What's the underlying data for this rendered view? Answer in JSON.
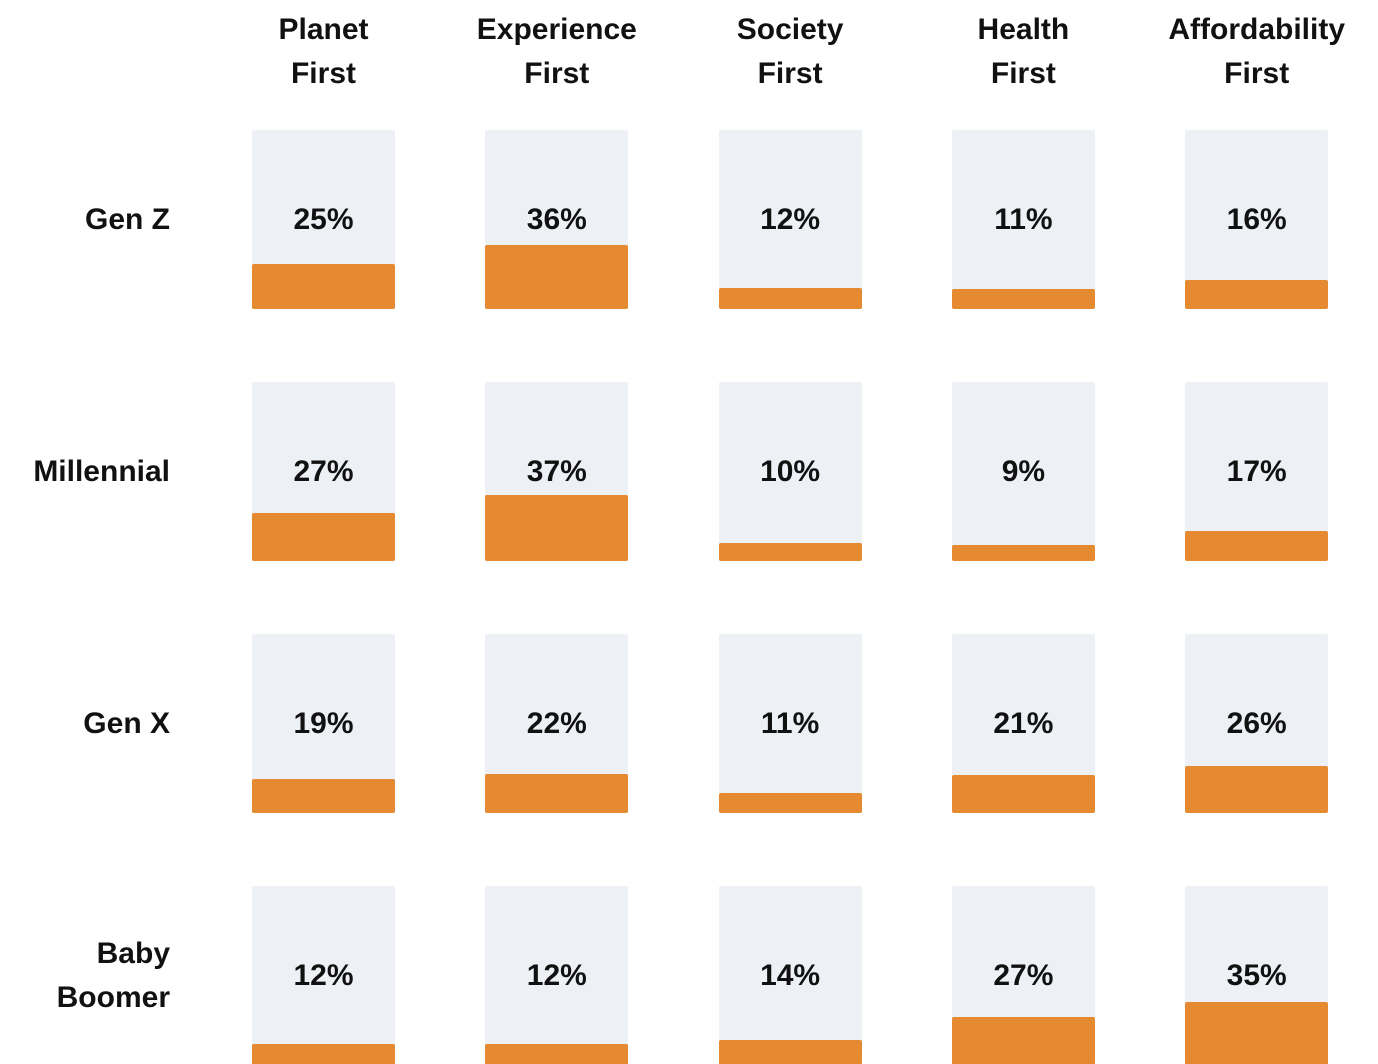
{
  "chart_data": {
    "type": "bar",
    "categories": [
      "Planet First",
      "Experience First",
      "Society First",
      "Health First",
      "Affordability First"
    ],
    "ylim": [
      0,
      100
    ],
    "color": "#e68a32",
    "series": [
      {
        "name": "Gen Z",
        "values": [
          25,
          36,
          12,
          11,
          16
        ],
        "value_labels": [
          "25%",
          "36%",
          "12%",
          "11%",
          "16%"
        ]
      },
      {
        "name": "Millennial",
        "values": [
          27,
          37,
          10,
          9,
          17
        ],
        "value_labels": [
          "27%",
          "37%",
          "10%",
          "9%",
          "17%"
        ]
      },
      {
        "name": "Gen X",
        "values": [
          19,
          22,
          11,
          21,
          26
        ],
        "value_labels": [
          "19%",
          "22%",
          "11%",
          "21%",
          "26%"
        ]
      },
      {
        "name": "Baby Boomer",
        "values": [
          12,
          12,
          14,
          27,
          35
        ],
        "value_labels": [
          "12%",
          "12%",
          "14%",
          "27%",
          "35%"
        ]
      }
    ]
  }
}
